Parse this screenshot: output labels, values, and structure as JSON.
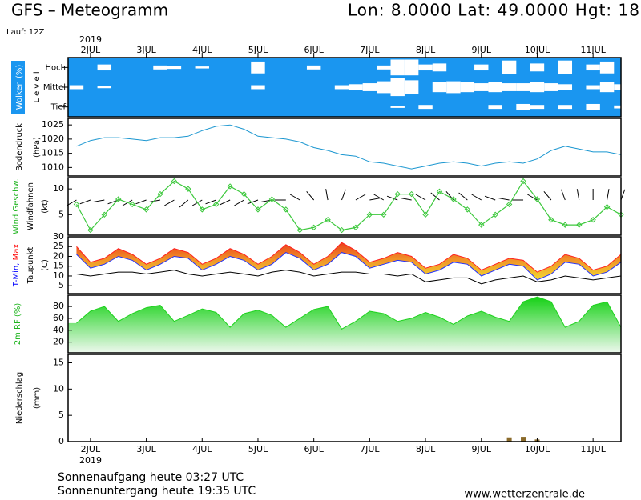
{
  "header": {
    "title": "GFS – Meteogramm",
    "location": "Lon: 8.0000  Lat: 49.0000  Hgt: 18",
    "run": "Lauf: 12Z"
  },
  "time_axis": {
    "year": "2019",
    "xlim": [
      1.6,
      11.5
    ],
    "xticks": [
      {
        "value": 2,
        "label": "2JUL"
      },
      {
        "value": 3,
        "label": "3JUL"
      },
      {
        "value": 4,
        "label": "4JUL"
      },
      {
        "value": 5,
        "label": "5JUL"
      },
      {
        "value": 6,
        "label": "6JUL"
      },
      {
        "value": 7,
        "label": "7JUL"
      },
      {
        "value": 8,
        "label": "8JUL"
      },
      {
        "value": 9,
        "label": "9JUL"
      },
      {
        "value": 10,
        "label": "10JUL"
      },
      {
        "value": 11,
        "label": "11JUL"
      }
    ],
    "x": [
      1.75,
      2,
      2.25,
      2.5,
      2.75,
      3,
      3.25,
      3.5,
      3.75,
      4,
      4.25,
      4.5,
      4.75,
      5,
      5.25,
      5.5,
      5.75,
      6,
      6.25,
      6.5,
      6.75,
      7,
      7.25,
      7.5,
      7.75,
      8,
      8.25,
      8.5,
      8.75,
      9,
      9.25,
      9.5,
      9.75,
      10,
      10.25,
      10.5,
      10.75,
      11,
      11.25,
      11.5
    ]
  },
  "chart_data": [
    {
      "type": "cloud",
      "ylabel": [
        [
          {
            "text": "Wolken (%)",
            "color": "#ffffff"
          }
        ],
        [
          {
            "text": "L e v e l",
            "color": "#000000"
          }
        ]
      ],
      "background": "#1a96f0",
      "series": [
        {
          "name": "Hoch",
          "color": "#ffffff",
          "values": [
            0,
            0,
            30,
            0,
            0,
            0,
            20,
            15,
            0,
            10,
            0,
            0,
            0,
            60,
            0,
            0,
            0,
            20,
            0,
            0,
            0,
            0,
            20,
            80,
            80,
            30,
            40,
            0,
            0,
            30,
            0,
            70,
            0,
            40,
            0,
            70,
            0,
            30,
            60,
            0
          ]
        },
        {
          "name": "Mittel",
          "color": "#ffffff",
          "values": [
            20,
            0,
            10,
            0,
            0,
            0,
            0,
            0,
            0,
            0,
            0,
            0,
            0,
            20,
            0,
            0,
            0,
            0,
            0,
            20,
            30,
            40,
            60,
            90,
            70,
            0,
            50,
            60,
            50,
            40,
            50,
            40,
            40,
            50,
            40,
            30,
            0,
            20,
            50,
            30
          ]
        },
        {
          "name": "Tief",
          "color": "#ffffff",
          "values": [
            0,
            0,
            0,
            0,
            0,
            0,
            0,
            0,
            0,
            0,
            0,
            0,
            0,
            0,
            0,
            0,
            0,
            0,
            0,
            0,
            0,
            0,
            0,
            10,
            0,
            20,
            0,
            0,
            0,
            0,
            20,
            0,
            30,
            20,
            0,
            20,
            0,
            30,
            0,
            15
          ]
        }
      ]
    },
    {
      "type": "line",
      "ylabel": [
        [
          {
            "text": "Bodendruck",
            "color": "#000000"
          }
        ],
        [
          {
            "text": "(hPa)",
            "color": "#000000"
          }
        ]
      ],
      "ylim": [
        1007,
        1027.3
      ],
      "yticks": [
        1010,
        1015,
        1020,
        1025
      ],
      "series": [
        {
          "name": "Bodendruck",
          "color": "#1a96d0",
          "values": [
            1017.5,
            1019.5,
            1020.5,
            1020.5,
            1020,
            1019.5,
            1020.5,
            1020.5,
            1021,
            1023,
            1024.5,
            1025,
            1023.5,
            1021,
            1020.5,
            1020,
            1019,
            1017,
            1016,
            1014.5,
            1014,
            1012,
            1011.5,
            1010.5,
            1009.5,
            1010.5,
            1011.5,
            1012,
            1011.5,
            1010.5,
            1011.5,
            1012,
            1011.5,
            1013,
            1016,
            1017.5,
            1016.5,
            1015.5,
            1015.5,
            1014.5
          ]
        }
      ]
    },
    {
      "type": "wind",
      "ylabel": [
        [
          {
            "text": "Wind Geschw.",
            "color": "#1eb41e"
          }
        ],
        [
          {
            "text": "Windfahnen",
            "color": "#000000"
          }
        ],
        [
          {
            "text": "(kt)",
            "color": "#000000"
          }
        ]
      ],
      "ylim": [
        1,
        12.2
      ],
      "yticks": [
        5,
        10
      ],
      "series": [
        {
          "name": "Wind Geschw.",
          "color": "#3cc83c",
          "values": [
            7,
            2,
            5,
            8,
            7,
            6,
            9,
            11.5,
            10,
            6,
            7,
            10.5,
            9,
            6,
            8,
            6,
            2,
            2.5,
            4,
            2,
            2.5,
            5,
            5,
            9,
            9,
            5,
            9.5,
            8,
            6,
            3,
            5,
            7,
            11.5,
            8,
            4,
            3,
            3,
            4,
            6.5,
            5
          ]
        },
        {
          "name": "Windfahnen",
          "color": "#000000",
          "values": [
            240,
            250,
            260,
            250,
            240,
            250,
            260,
            240,
            230,
            240,
            250,
            245,
            240,
            250,
            260,
            270,
            300,
            320,
            350,
            20,
            60,
            80,
            300,
            290,
            280,
            300,
            310,
            320,
            310,
            300,
            290,
            280,
            270,
            300,
            320,
            340,
            350,
            0,
            10,
            20
          ]
        }
      ]
    },
    {
      "type": "band",
      "ylabel": [
        [
          {
            "text": "T-Min, ",
            "color": "#0000ff"
          },
          {
            "text": "Max",
            "color": "#ff0000"
          }
        ],
        [
          {
            "text": "Taupunkt",
            "color": "#000000"
          }
        ],
        [
          {
            "text": "(C)",
            "color": "#000000"
          }
        ]
      ],
      "ylim": [
        1,
        30
      ],
      "yticks": [
        5,
        10,
        15,
        20,
        25,
        30
      ],
      "series": [
        {
          "name": "Max",
          "color": "#ff2020",
          "values": [
            25,
            17,
            19,
            24,
            21,
            16,
            19,
            24,
            22,
            16,
            19,
            24,
            21,
            16,
            20,
            26,
            22,
            16,
            20,
            27,
            23,
            17,
            19,
            22,
            20,
            14,
            16,
            21,
            19,
            13,
            16,
            19,
            18,
            12,
            15,
            21,
            19,
            13,
            15,
            21
          ]
        },
        {
          "name": "T-Min",
          "color": "#2030ff",
          "values": [
            21,
            14,
            16,
            20,
            18,
            13,
            16,
            20,
            19,
            13,
            16,
            20,
            18,
            13,
            16,
            22,
            19,
            13,
            16,
            22,
            20,
            14,
            16,
            18,
            17,
            11,
            13,
            17,
            16,
            10,
            13,
            16,
            15,
            8,
            11,
            17,
            16,
            10,
            12,
            17
          ]
        },
        {
          "name": "Taupunkt",
          "color": "#000000",
          "values": [
            11,
            10,
            11,
            12,
            12,
            11,
            12,
            13,
            11,
            10,
            11,
            12,
            11,
            10,
            12,
            13,
            12,
            10,
            11,
            12,
            12,
            11,
            11,
            10,
            11,
            7,
            8,
            9,
            9,
            6,
            8,
            9,
            10,
            7,
            8,
            10,
            9,
            8,
            9,
            10
          ]
        }
      ]
    },
    {
      "type": "area",
      "ylabel": [
        [
          {
            "text": "2m RF (%)",
            "color": "#1eb41e"
          }
        ]
      ],
      "ylim": [
        2,
        99
      ],
      "yticks": [
        20,
        40,
        60,
        80
      ],
      "series": [
        {
          "name": "2m RF (%)",
          "color": "#1ed21e",
          "values": [
            52,
            72,
            80,
            55,
            68,
            78,
            82,
            55,
            65,
            76,
            70,
            45,
            68,
            74,
            65,
            45,
            60,
            75,
            80,
            42,
            55,
            72,
            68,
            55,
            60,
            70,
            62,
            50,
            64,
            72,
            62,
            55,
            88,
            96,
            88,
            45,
            55,
            82,
            88,
            45
          ]
        }
      ]
    },
    {
      "type": "bar",
      "ylabel": [
        [
          {
            "text": "Niederschlag",
            "color": "#000000"
          }
        ],
        [
          {
            "text": "(mm)",
            "color": "#000000"
          }
        ]
      ],
      "ylim": [
        0,
        16.6
      ],
      "yticks": [
        0,
        5,
        10,
        15
      ],
      "series": [
        {
          "name": "Niederschlag",
          "color": "#8a6a2a",
          "values": [
            0,
            0,
            0,
            0,
            0,
            0,
            0,
            0,
            0,
            0,
            0,
            0,
            0,
            0,
            0,
            0,
            0,
            0,
            0,
            0,
            0,
            0,
            0,
            0,
            0,
            0,
            0,
            0,
            0,
            0,
            0,
            0.8,
            0.9,
            0.4,
            0,
            0,
            0,
            0,
            0,
            0
          ]
        }
      ]
    }
  ],
  "footer": {
    "sunrise": "Sonnenaufgang heute 03:27 UTC",
    "sunset": "Sonnenuntergang heute 19:35 UTC",
    "site": "www.wetterzentrale.de"
  }
}
